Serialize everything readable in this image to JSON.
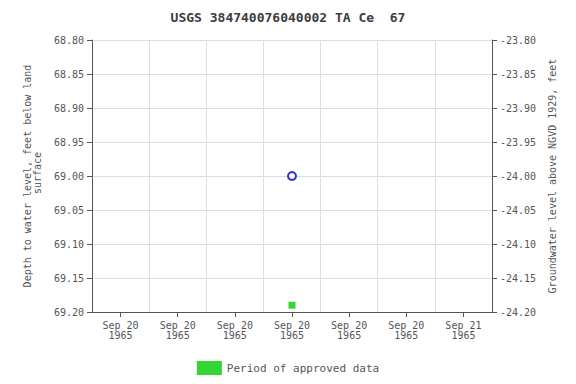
{
  "chart_data": {
    "type": "scatter",
    "title": "USGS 384740076040002 TA Ce  67",
    "ylabel": "Depth to water level, feet below land\n surface",
    "y2label": "Groundwater level above NGVD 1929, feet",
    "categories": [
      "Sep 20\n1965",
      "Sep 20\n1965",
      "Sep 20\n1965",
      "Sep 20\n1965",
      "Sep 20\n1965",
      "Sep 20\n1965",
      "Sep 21\n1965"
    ],
    "series": [
      {
        "color": "#0000cc",
        "marker": "open_circle",
        "values": [
          null,
          null,
          null,
          69.0,
          null,
          null,
          null
        ]
      },
      {
        "name": "Period of approved data",
        "color": "#00cc00",
        "marker": "square",
        "values": [
          null,
          null,
          null,
          69.19,
          null,
          null,
          null
        ]
      }
    ],
    "ylim": [
      69.2,
      68.8
    ],
    "yticks": [
      {
        "value": 68.8,
        "label": "68.80"
      },
      68.85,
      {
        "value": 68.9,
        "label": "68.90"
      },
      68.95,
      {
        "value": 69.0,
        "label": "69.00"
      },
      69.05,
      {
        "value": 69.1,
        "label": "69.10"
      },
      69.15,
      {
        "value": 69.2,
        "label": "69.20"
      }
    ],
    "y2lim": [
      -24.2,
      -23.8
    ],
    "y2ticks": [
      {
        "value": -23.8,
        "label": "-23.80"
      },
      -23.85,
      {
        "value": -23.9,
        "label": "-23.90"
      },
      -23.95,
      {
        "value": -24.0,
        "label": "-24.00"
      },
      -24.05,
      {
        "value": -24.1,
        "label": "-24.10"
      },
      -24.15,
      {
        "value": -24.2,
        "label": "-24.20"
      }
    ],
    "grid": true,
    "legend": "bottom"
  }
}
